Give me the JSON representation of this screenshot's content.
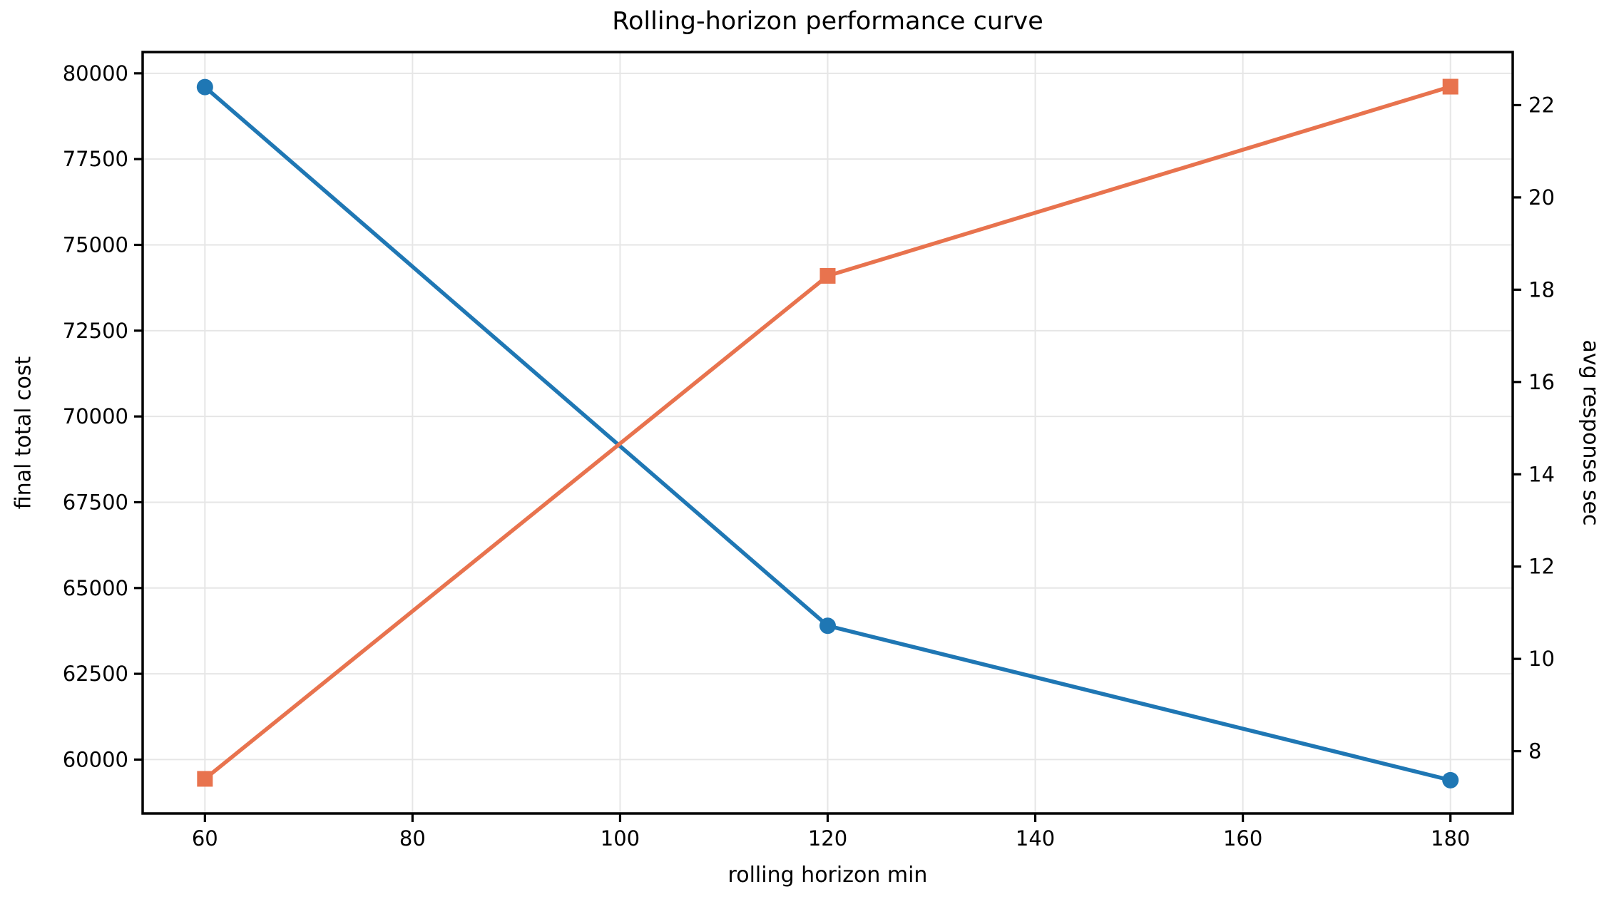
{
  "title": "Rolling-horizon performance curve",
  "axes": {
    "xlabel": "rolling horizon min",
    "ylabel_left": "final total cost",
    "ylabel_right": "avg response sec"
  },
  "chart_data": {
    "type": "line",
    "title": "Rolling-horizon performance curve",
    "xlabel": "rolling horizon min",
    "ylabel_left": "final total cost",
    "ylabel_right": "avg response sec",
    "x": [
      60,
      120,
      180
    ],
    "series": [
      {
        "name": "final total cost",
        "axis": "left",
        "color": "#1f77b4",
        "marker": "circle",
        "values": [
          79600,
          63900,
          59400
        ]
      },
      {
        "name": "avg response sec",
        "axis": "right",
        "color": "#e8734e",
        "marker": "square",
        "values": [
          7.4,
          18.3,
          22.4
        ]
      }
    ],
    "x_ticks": [
      60,
      80,
      100,
      120,
      140,
      160,
      180
    ],
    "y_ticks_left": [
      60000,
      62500,
      65000,
      67500,
      70000,
      72500,
      75000,
      77500,
      80000
    ],
    "y_ticks_right": [
      8,
      10,
      12,
      14,
      16,
      18,
      20,
      22
    ],
    "xlim": [
      54,
      186
    ],
    "ylim_left": [
      58430,
      80620
    ],
    "ylim_right": [
      6.65,
      23.15
    ],
    "grid": true,
    "legend": "none",
    "colors": {
      "background": "#ffffff",
      "grid": "#e6e6e6",
      "spine": "#000000",
      "text": "#000000"
    }
  }
}
